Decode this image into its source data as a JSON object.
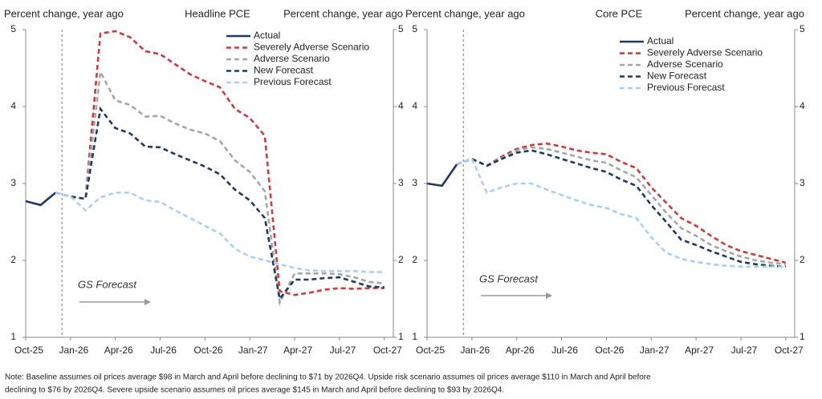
{
  "charts": [
    {
      "chart_data": {
        "type": "line",
        "title": "Headline PCE",
        "ylabel": "Percent change, year ago",
        "y2label": "Percent change, year ago",
        "annotation": "GS Forecast",
        "categories": [
          "Oct-25",
          null,
          null,
          "Jan-26",
          null,
          null,
          "Apr-26",
          null,
          null,
          "Jul-26",
          null,
          null,
          "Oct-26",
          null,
          null,
          "Jan-27",
          null,
          null,
          "Apr-27",
          null,
          null,
          "Jul-27",
          null,
          null,
          "Oct-27"
        ],
        "ylim": [
          1,
          5
        ],
        "yticks": [
          1,
          2,
          3,
          4,
          5
        ],
        "legend": "upper right",
        "series": [
          {
            "name": "Actual",
            "color": "#1f3864",
            "dashed": false,
            "values": [
              2.77,
              2.72,
              2.88,
              null,
              null,
              null,
              null,
              null,
              null,
              null,
              null,
              null,
              null,
              null,
              null,
              null,
              null,
              null,
              null,
              null,
              null,
              null,
              null,
              null,
              null
            ]
          },
          {
            "name": "Severely Adverse Scenario",
            "color": "#d0393b",
            "dashed": true,
            "values": [
              null,
              null,
              2.88,
              2.83,
              2.8,
              4.95,
              4.98,
              4.9,
              4.72,
              4.68,
              4.55,
              4.42,
              4.33,
              4.25,
              3.97,
              3.85,
              3.62,
              1.6,
              1.55,
              1.58,
              1.62,
              1.64,
              1.63,
              1.64,
              1.64
            ]
          },
          {
            "name": "Adverse Scenario",
            "color": "#a6a6a6",
            "dashed": true,
            "values": [
              null,
              null,
              2.88,
              2.83,
              2.8,
              4.45,
              4.08,
              4.02,
              3.87,
              3.88,
              3.78,
              3.7,
              3.65,
              3.55,
              3.3,
              3.15,
              2.9,
              1.45,
              1.83,
              1.83,
              1.83,
              1.82,
              1.78,
              1.72,
              1.7
            ]
          },
          {
            "name": "New Forecast",
            "color": "#1f3c5f",
            "dashed": true,
            "values": [
              null,
              null,
              2.88,
              2.83,
              2.8,
              3.97,
              3.72,
              3.65,
              3.48,
              3.47,
              3.38,
              3.3,
              3.22,
              3.12,
              2.92,
              2.78,
              2.55,
              1.5,
              1.75,
              1.75,
              1.77,
              1.78,
              1.72,
              1.66,
              1.65
            ]
          },
          {
            "name": "Previous Forecast",
            "color": "#a9d0f0",
            "dashed": true,
            "values": [
              null,
              null,
              2.88,
              2.83,
              2.65,
              2.82,
              2.88,
              2.88,
              2.78,
              2.76,
              2.65,
              2.55,
              2.45,
              2.35,
              2.15,
              2.05,
              2.0,
              1.95,
              1.9,
              1.87,
              1.86,
              1.86,
              1.86,
              1.85,
              1.85
            ]
          }
        ]
      }
    },
    {
      "chart_data": {
        "type": "line",
        "title": "Core PCE",
        "ylabel": "Percent change, year ago",
        "y2label": "Percent change, year ago",
        "annotation": "GS Forecast",
        "categories": [
          "Oct-25",
          null,
          null,
          "Jan-26",
          null,
          null,
          "Apr-26",
          null,
          null,
          "Jul-26",
          null,
          null,
          "Oct-26",
          null,
          null,
          "Jan-27",
          null,
          null,
          "Apr-27",
          null,
          null,
          "Jul-27",
          null,
          null,
          "Oct-27"
        ],
        "ylim": [
          1,
          5
        ],
        "yticks": [
          1,
          2,
          3,
          4,
          5
        ],
        "legend": "upper right",
        "series": [
          {
            "name": "Actual",
            "color": "#1f3864",
            "dashed": false,
            "values": [
              3.0,
              2.97,
              3.25,
              null,
              null,
              null,
              null,
              null,
              null,
              null,
              null,
              null,
              null,
              null,
              null,
              null,
              null,
              null,
              null,
              null,
              null,
              null,
              null,
              null,
              null
            ]
          },
          {
            "name": "Severely Adverse Scenario",
            "color": "#d0393b",
            "dashed": true,
            "values": [
              null,
              null,
              3.25,
              3.32,
              3.23,
              3.35,
              3.45,
              3.5,
              3.52,
              3.48,
              3.43,
              3.4,
              3.38,
              3.28,
              3.2,
              2.95,
              2.75,
              2.55,
              2.45,
              2.32,
              2.2,
              2.12,
              2.07,
              2.02,
              1.97
            ]
          },
          {
            "name": "Adverse Scenario",
            "color": "#a6a6a6",
            "dashed": true,
            "values": [
              null,
              null,
              3.25,
              3.32,
              3.23,
              3.33,
              3.43,
              3.47,
              3.45,
              3.4,
              3.35,
              3.3,
              3.27,
              3.17,
              3.08,
              2.85,
              2.62,
              2.42,
              2.32,
              2.2,
              2.12,
              2.05,
              2.0,
              1.97,
              1.95
            ]
          },
          {
            "name": "New Forecast",
            "color": "#1f3c5f",
            "dashed": true,
            "values": [
              null,
              null,
              3.25,
              3.32,
              3.23,
              3.32,
              3.4,
              3.43,
              3.38,
              3.32,
              3.26,
              3.2,
              3.15,
              3.05,
              2.97,
              2.72,
              2.5,
              2.27,
              2.2,
              2.12,
              2.05,
              1.98,
              1.95,
              1.93,
              1.92
            ]
          },
          {
            "name": "Previous Forecast",
            "color": "#a9d0f0",
            "dashed": true,
            "values": [
              null,
              null,
              3.25,
              3.32,
              2.88,
              2.95,
              3.0,
              3.0,
              2.92,
              2.85,
              2.78,
              2.72,
              2.68,
              2.6,
              2.55,
              2.3,
              2.1,
              2.02,
              1.98,
              1.95,
              1.93,
              1.92,
              1.92,
              1.92,
              1.92
            ]
          }
        ]
      }
    }
  ],
  "note": [
    "Note: Baseline assumes oil prices average $98 in March and April before declining to $71 by 2026Q4. Upside risk scenario assumes oil prices average $110 in March and April before",
    "declining to $76 by 2026Q4. Severe upside scenario assumes oil prices average $145 in March and April before declining to $93 by 2026Q4."
  ]
}
